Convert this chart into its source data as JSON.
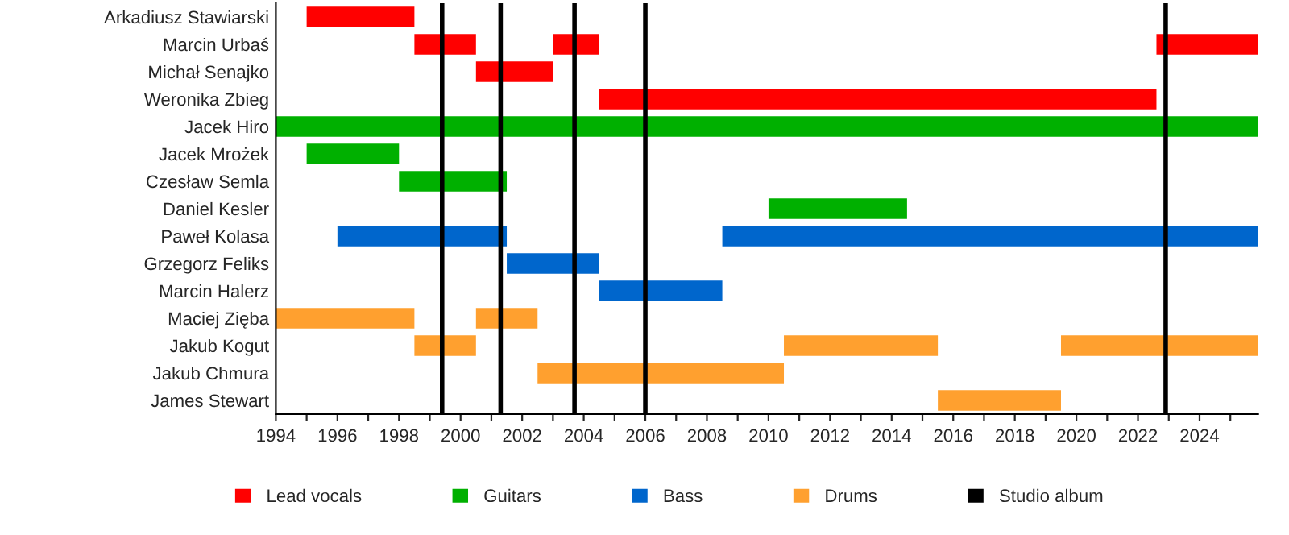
{
  "chart_data": {
    "type": "bar",
    "orientation": "horizontal",
    "categories": [
      "Arkadiusz Stawiarski",
      "Marcin Urbaś",
      "Michał Senajko",
      "Weronika Zbieg",
      "Jacek Hiro",
      "Jacek Mrożek",
      "Czesław Semla",
      "Daniel Kesler",
      "Paweł Kolasa",
      "Grzegorz Feliks",
      "Marcin Halerz",
      "Maciej Zięba",
      "Jakub Kogut",
      "Jakub Chmura",
      "James Stewart"
    ],
    "series": [
      {
        "name": "Lead vocals",
        "color": "#ff0000",
        "base": [
          1995,
          1998.5,
          2000.5,
          2004.5,
          null,
          null,
          null,
          null,
          null,
          null,
          null,
          null,
          null,
          null,
          null
        ],
        "values": [
          3.5,
          2,
          2.5,
          18.1,
          null,
          null,
          null,
          null,
          null,
          null,
          null,
          null,
          null,
          null,
          null
        ]
      },
      {
        "color": "#ff0000",
        "base": [
          null,
          2003,
          null,
          null,
          null,
          null,
          null,
          null,
          null,
          null,
          null,
          null,
          null,
          null,
          null
        ],
        "values": [
          null,
          1.5,
          null,
          null,
          null,
          null,
          null,
          null,
          null,
          null,
          null,
          null,
          null,
          null,
          null
        ]
      },
      {
        "color": "#ff0000",
        "base": [
          null,
          2022.6,
          null,
          null,
          null,
          null,
          null,
          null,
          null,
          null,
          null,
          null,
          null,
          null,
          null
        ],
        "values": [
          null,
          3.3,
          null,
          null,
          null,
          null,
          null,
          null,
          null,
          null,
          null,
          null,
          null,
          null,
          null
        ]
      },
      {
        "name": "Guitars",
        "color": "#00b000",
        "base": [
          null,
          null,
          null,
          null,
          1994,
          1995,
          1998,
          2010,
          null,
          null,
          null,
          null,
          null,
          null,
          null
        ],
        "values": [
          null,
          null,
          null,
          null,
          31.9,
          3,
          3.5,
          4.5,
          null,
          null,
          null,
          null,
          null,
          null,
          null
        ]
      },
      {
        "name": "Bass",
        "color": "#0066cc",
        "base": [
          null,
          null,
          null,
          null,
          null,
          null,
          null,
          null,
          1996,
          2001.5,
          2004.5,
          null,
          null,
          null,
          null
        ],
        "values": [
          null,
          null,
          null,
          null,
          null,
          null,
          null,
          null,
          5.5,
          3,
          4,
          null,
          null,
          null,
          null
        ]
      },
      {
        "color": "#0066cc",
        "base": [
          null,
          null,
          null,
          null,
          null,
          null,
          null,
          null,
          2008.5,
          null,
          null,
          null,
          null,
          null,
          null
        ],
        "values": [
          null,
          null,
          null,
          null,
          null,
          null,
          null,
          null,
          17.4,
          null,
          null,
          null,
          null,
          null,
          null
        ]
      },
      {
        "name": "Drums",
        "color": "#ffa02f",
        "base": [
          null,
          null,
          null,
          null,
          null,
          null,
          null,
          null,
          null,
          null,
          null,
          1994,
          1998.5,
          2002.5,
          2015.5
        ],
        "values": [
          null,
          null,
          null,
          null,
          null,
          null,
          null,
          null,
          null,
          null,
          null,
          4.5,
          2,
          8,
          4
        ]
      },
      {
        "color": "#ffa02f",
        "base": [
          null,
          null,
          null,
          null,
          null,
          null,
          null,
          null,
          null,
          null,
          null,
          2000.5,
          2010.5,
          null,
          null
        ],
        "values": [
          null,
          null,
          null,
          null,
          null,
          null,
          null,
          null,
          null,
          null,
          null,
          2,
          5,
          null,
          null
        ]
      },
      {
        "color": "#ffa02f",
        "base": [
          null,
          null,
          null,
          null,
          null,
          null,
          null,
          null,
          null,
          null,
          null,
          null,
          2019.5,
          null,
          null
        ],
        "values": [
          null,
          null,
          null,
          null,
          null,
          null,
          null,
          null,
          null,
          null,
          null,
          null,
          6.4,
          null,
          null
        ]
      }
    ],
    "ref_lines": [
      {
        "axis": "x",
        "value": 1999.4,
        "label": "Studio album",
        "color": "#000000"
      },
      {
        "axis": "x",
        "value": 2001.3,
        "color": "#000000"
      },
      {
        "axis": "x",
        "value": 2003.7,
        "color": "#000000"
      },
      {
        "axis": "x",
        "value": 2006.0,
        "color": "#000000"
      },
      {
        "axis": "x",
        "value": 2022.9,
        "color": "#000000"
      }
    ],
    "xlim": [
      1994,
      2025.9
    ],
    "xticks": [
      1994,
      {
        "value": 1995,
        "label": null
      },
      1996,
      {
        "value": 1997,
        "label": null
      },
      1998,
      {
        "value": 1999,
        "label": null
      },
      2000,
      {
        "value": 2001,
        "label": null
      },
      2002,
      {
        "value": 2003,
        "label": null
      },
      2004,
      {
        "value": 2005,
        "label": null
      },
      2006,
      {
        "value": 2007,
        "label": null
      },
      2008,
      {
        "value": 2009,
        "label": null
      },
      2010,
      {
        "value": 2011,
        "label": null
      },
      2012,
      {
        "value": 2013,
        "label": null
      },
      2014,
      {
        "value": 2015,
        "label": null
      },
      2016,
      {
        "value": 2017,
        "label": null
      },
      2018,
      {
        "value": 2019,
        "label": null
      },
      2020,
      {
        "value": 2021,
        "label": null
      },
      2022,
      {
        "value": 2023,
        "label": null
      },
      2024,
      {
        "value": 2025,
        "label": null
      }
    ],
    "grid": false,
    "legend": "bottom"
  }
}
